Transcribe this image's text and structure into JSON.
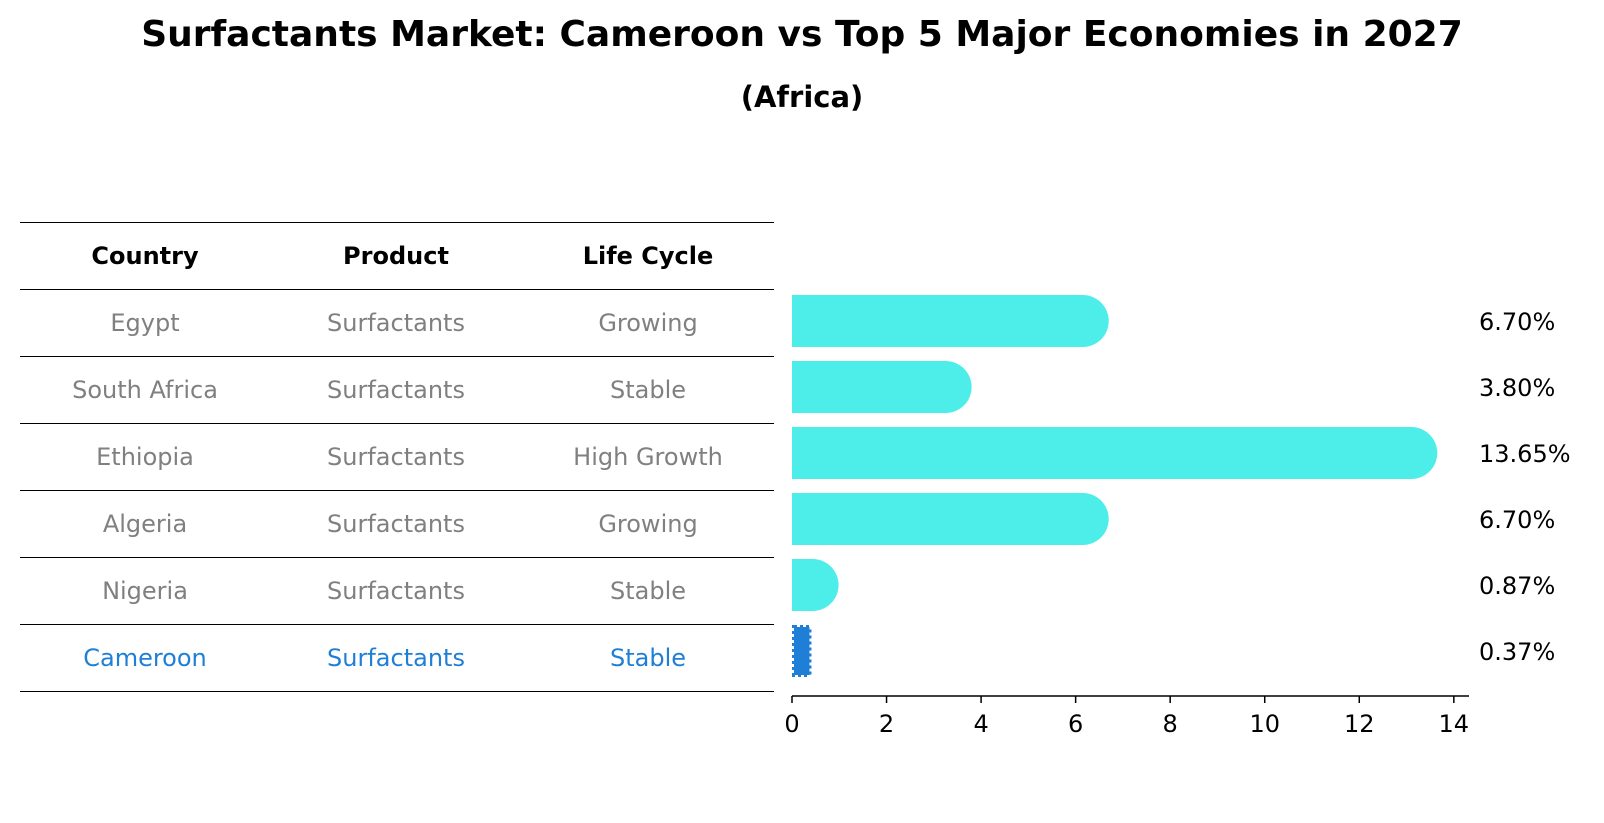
{
  "title": "Surfactants Market: Cameroon vs Top 5 Major Economies in 2027",
  "subtitle": "(Africa)",
  "table": {
    "headers": [
      "Country",
      "Product",
      "Life Cycle"
    ],
    "rows": [
      [
        "Egypt",
        "Surfactants",
        "Growing"
      ],
      [
        "South Africa",
        "Surfactants",
        "Stable"
      ],
      [
        "Ethiopia",
        "Surfactants",
        "High Growth"
      ],
      [
        "Algeria",
        "Surfactants",
        "Growing"
      ],
      [
        "Nigeria",
        "Surfactants",
        "Stable"
      ],
      [
        "Cameroon",
        "Surfactants",
        "Stable"
      ]
    ]
  },
  "colors": {
    "bar": "#4DEEEA",
    "highlight": "#1F7FD6",
    "muted_text": "#808080"
  },
  "chart_data": {
    "type": "bar",
    "orientation": "horizontal",
    "categories": [
      "Egypt",
      "South Africa",
      "Ethiopia",
      "Algeria",
      "Nigeria",
      "Cameroon"
    ],
    "values": [
      6.7,
      3.8,
      13.65,
      6.7,
      0.87,
      0.37
    ],
    "value_labels": [
      "6.70%",
      "3.80%",
      "13.65%",
      "6.70%",
      "0.87%",
      "0.37%"
    ],
    "highlight_category": "Cameroon",
    "xlim": [
      0,
      14.3
    ],
    "xticks": [
      0,
      2,
      4,
      6,
      8,
      10,
      12,
      14
    ],
    "grid": false
  }
}
